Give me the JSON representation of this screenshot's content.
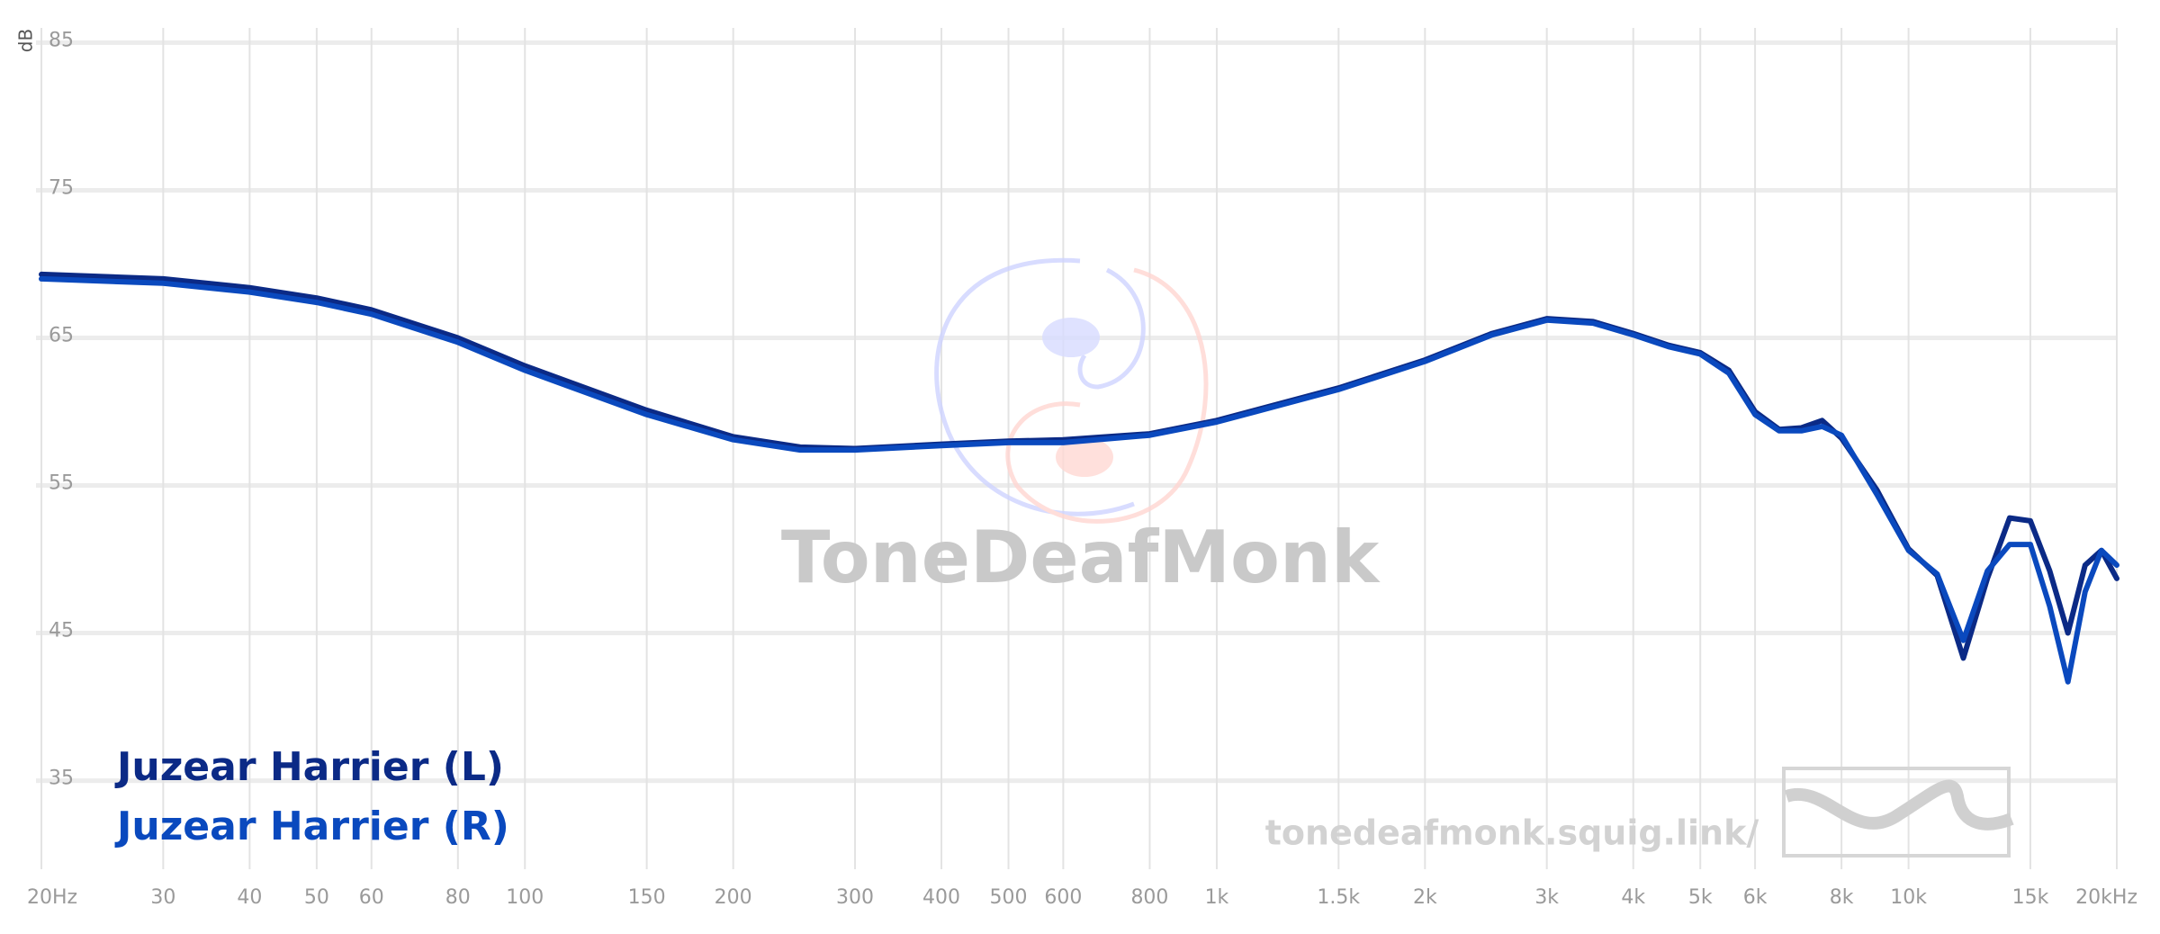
{
  "chart_data": {
    "type": "line",
    "y_label": "dB",
    "watermark": "ToneDeafMonk",
    "url": "tonedeafmonk.squig.link/",
    "xscale": "log",
    "grid": true,
    "legend": "lower left",
    "xlim": [
      20,
      20000
    ],
    "ylim": [
      29,
      86
    ],
    "yticks": [
      35,
      45,
      55,
      65,
      75,
      85
    ],
    "xticks": [
      {
        "value": 20,
        "label": "20Hz"
      },
      30,
      40,
      50,
      60,
      80,
      100,
      150,
      200,
      300,
      400,
      500,
      600,
      800,
      {
        "value": 1000,
        "label": "1k"
      },
      {
        "value": 1500,
        "label": "1.5k"
      },
      {
        "value": 2000,
        "label": "2k"
      },
      {
        "value": 3000,
        "label": "3k"
      },
      {
        "value": 4000,
        "label": "4k"
      },
      {
        "value": 5000,
        "label": "5k"
      },
      {
        "value": 6000,
        "label": "6k"
      },
      {
        "value": 8000,
        "label": "8k"
      },
      {
        "value": 10000,
        "label": "10k"
      },
      {
        "value": 15000,
        "label": "15k"
      },
      {
        "value": 20000,
        "label": "20kHz"
      }
    ],
    "x": [
      20,
      30,
      40,
      50,
      60,
      80,
      100,
      150,
      200,
      250,
      300,
      400,
      500,
      600,
      800,
      1000,
      1500,
      2000,
      2500,
      3000,
      3500,
      4000,
      4500,
      5000,
      5500,
      6000,
      6500,
      7000,
      7500,
      8000,
      9000,
      10000,
      11000,
      12000,
      13000,
      14000,
      15000,
      16000,
      17000,
      18000,
      19000,
      20000
    ],
    "series": [
      {
        "name": "Juzear Harrier (L)",
        "color": "#0b2a86",
        "values": [
          69.3,
          69.0,
          68.4,
          67.7,
          66.9,
          65.0,
          63.1,
          60.1,
          58.3,
          57.6,
          57.5,
          57.8,
          58.0,
          58.1,
          58.5,
          59.4,
          61.6,
          63.5,
          65.3,
          66.3,
          66.1,
          65.3,
          64.5,
          64.0,
          62.8,
          60.0,
          58.8,
          58.9,
          59.4,
          58.2,
          54.7,
          50.7,
          48.9,
          43.3,
          48.7,
          52.8,
          52.6,
          49.2,
          45.0,
          49.6,
          50.6,
          48.7
        ]
      },
      {
        "name": "Juzear Harrier (R)",
        "color": "#0a49be",
        "values": [
          69.0,
          68.7,
          68.1,
          67.4,
          66.6,
          64.7,
          62.8,
          59.8,
          58.1,
          57.4,
          57.4,
          57.7,
          57.9,
          57.9,
          58.4,
          59.3,
          61.5,
          63.4,
          65.2,
          66.2,
          66.0,
          65.2,
          64.4,
          63.9,
          62.6,
          59.8,
          58.7,
          58.7,
          59.0,
          58.4,
          54.4,
          50.6,
          49.0,
          44.5,
          49.2,
          51.0,
          51.0,
          46.8,
          41.7,
          47.8,
          50.6,
          49.6
        ]
      }
    ]
  }
}
